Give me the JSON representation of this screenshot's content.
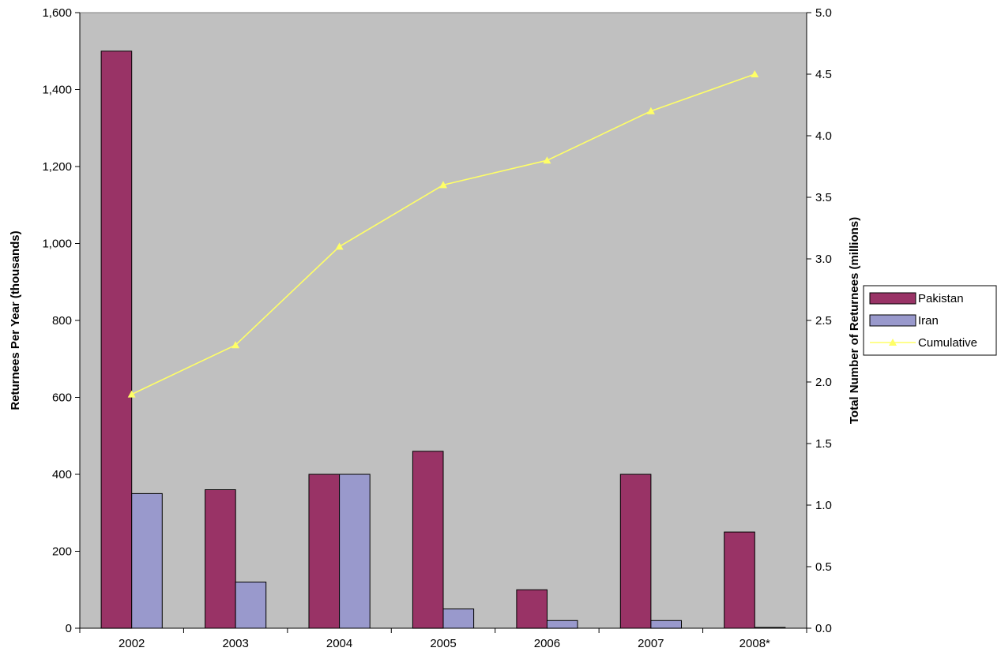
{
  "chart_data": {
    "type": "bar",
    "categories": [
      "2002",
      "2003",
      "2004",
      "2005",
      "2006",
      "2007",
      "2008*"
    ],
    "series": [
      {
        "name": "Pakistan",
        "kind": "bar",
        "axis": "left",
        "color": "#993366",
        "values": [
          1500,
          360,
          400,
          460,
          100,
          400,
          250
        ]
      },
      {
        "name": "Iran",
        "kind": "bar",
        "axis": "left",
        "color": "#9999CC",
        "values": [
          350,
          120,
          400,
          50,
          20,
          20,
          2
        ]
      },
      {
        "name": "Cumulative",
        "kind": "line",
        "axis": "right",
        "color": "#FFFF66",
        "marker": "triangle",
        "values": [
          1.9,
          2.3,
          3.1,
          3.6,
          3.8,
          4.2,
          4.5
        ]
      }
    ],
    "title": "",
    "xlabel": "",
    "ylabel": "Returnees Per Year (thousands)",
    "y2label": "Total Number of Returnees (millions)",
    "ylim": [
      0,
      1600
    ],
    "y2lim": [
      0,
      5.0
    ],
    "yticks": [
      "0",
      "200",
      "400",
      "600",
      "800",
      "1,000",
      "1,200",
      "1,400",
      "1,600"
    ],
    "y2ticks": [
      "0.0",
      "0.5",
      "1.0",
      "1.5",
      "2.0",
      "2.5",
      "3.0",
      "3.5",
      "4.0",
      "4.5",
      "5.0"
    ],
    "plot_background": "#C0C0C0",
    "grid": false,
    "legend": "right"
  }
}
